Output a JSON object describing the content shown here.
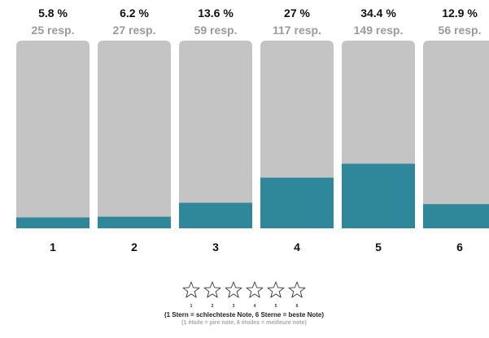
{
  "colors": {
    "track": "#c4c4c4",
    "fill": "#2e8899",
    "percent_text": "#111111",
    "response_text": "#9a9a9a",
    "star_outline": "#333333"
  },
  "chart_data": {
    "type": "bar",
    "categories": [
      "1",
      "2",
      "3",
      "4",
      "5",
      "6"
    ],
    "values": [
      5.8,
      6.2,
      13.6,
      27,
      34.4,
      12.9
    ],
    "value_labels": [
      "5.8 %",
      "6.2 %",
      "13.6 %",
      "27 %",
      "34.4 %",
      "12.9 %"
    ],
    "responses": [
      "25 resp.",
      "27 resp.",
      "59 resp.",
      "117 resp.",
      "149 resp.",
      "56 resp."
    ],
    "ylim": [
      0,
      100
    ],
    "unit": "%",
    "grid": false
  },
  "legend": {
    "icon": "star-icon",
    "stars": [
      "1",
      "2",
      "3",
      "4",
      "5",
      "6"
    ],
    "note_de": "(1 Stern = schlechteste Note, 6 Sterne = beste Note)",
    "note_fr": "(1 étoile = pire note, 6 étoiles = meilleure note)"
  }
}
